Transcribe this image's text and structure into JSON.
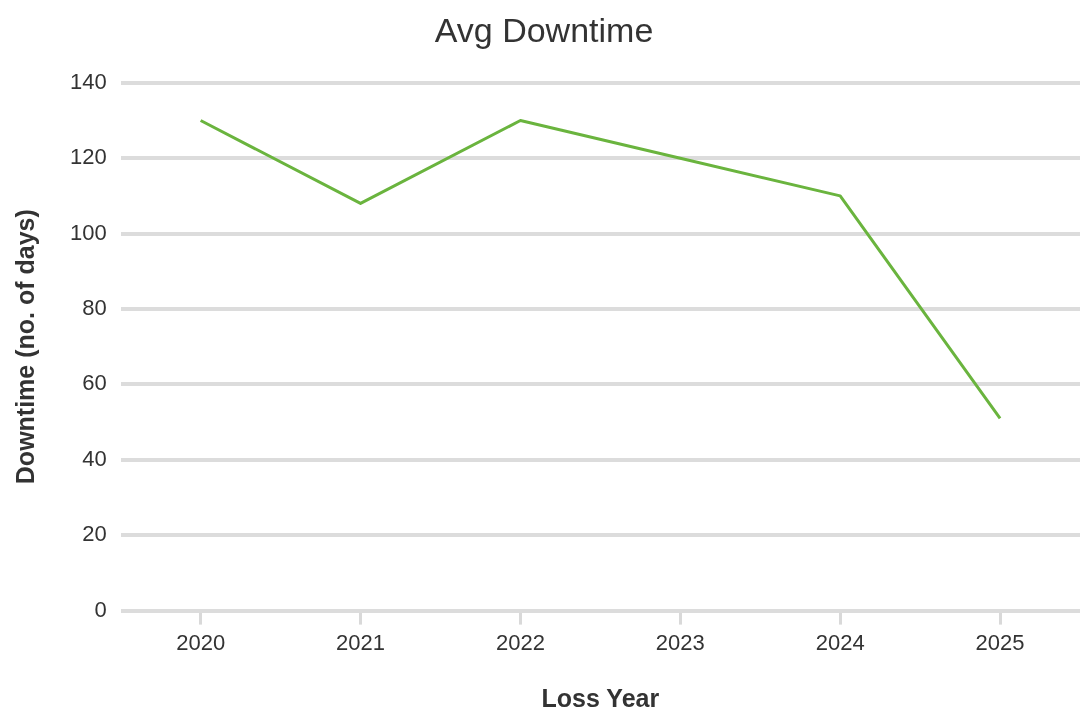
{
  "chart_data": {
    "type": "line",
    "title": "Avg Downtime",
    "xlabel": "Loss Year",
    "ylabel": "Downtime (no. of days)",
    "categories": [
      "2020",
      "2021",
      "2022",
      "2023",
      "2024",
      "2025"
    ],
    "series": [
      {
        "color": "#6ab43e",
        "values": [
          130,
          108,
          130,
          120,
          110,
          51
        ]
      }
    ],
    "ylim": [
      0,
      140
    ],
    "yticks": [
      0,
      20,
      40,
      60,
      80,
      100,
      120,
      140
    ],
    "grid": "y",
    "legend": false,
    "marker": "none",
    "line_style": "solid"
  }
}
